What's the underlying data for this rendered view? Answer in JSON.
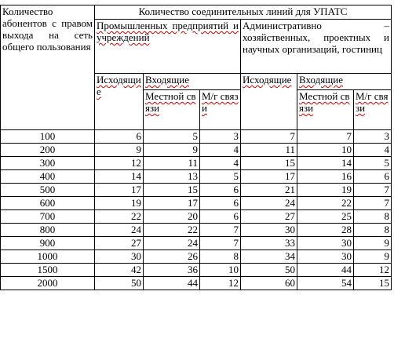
{
  "table": {
    "header": {
      "subscribers": "Количество абонентов с правом выхода на сеть общего пользования",
      "lines": "Количество соединительных линий для УПАТС",
      "group1": "Промышленных предприятий и учреждений",
      "group2": "Административно – хозяйственных, проектных и научных организаций, гостиниц",
      "outgoing1": "Исходящие",
      "incoming1": "Входящие",
      "local1": "Местной связи",
      "longdist1": "М/г связи",
      "outgoing2": "Исходящие",
      "incoming2": "Входящие",
      "local2": "Местной связи",
      "longdist2": "М/г связи"
    },
    "rows": [
      [
        100,
        6,
        5,
        3,
        7,
        7,
        3
      ],
      [
        200,
        9,
        9,
        4,
        11,
        10,
        4
      ],
      [
        300,
        12,
        11,
        4,
        15,
        14,
        5
      ],
      [
        400,
        14,
        13,
        5,
        17,
        16,
        6
      ],
      [
        500,
        17,
        15,
        6,
        21,
        19,
        7
      ],
      [
        600,
        19,
        17,
        6,
        24,
        22,
        7
      ],
      [
        700,
        22,
        20,
        6,
        27,
        25,
        8
      ],
      [
        800,
        24,
        22,
        7,
        30,
        28,
        8
      ],
      [
        900,
        27,
        24,
        7,
        33,
        30,
        9
      ],
      [
        1000,
        30,
        26,
        8,
        34,
        30,
        9
      ],
      [
        1500,
        42,
        36,
        10,
        50,
        44,
        12
      ],
      [
        2000,
        50,
        44,
        12,
        60,
        54,
        15
      ]
    ]
  }
}
